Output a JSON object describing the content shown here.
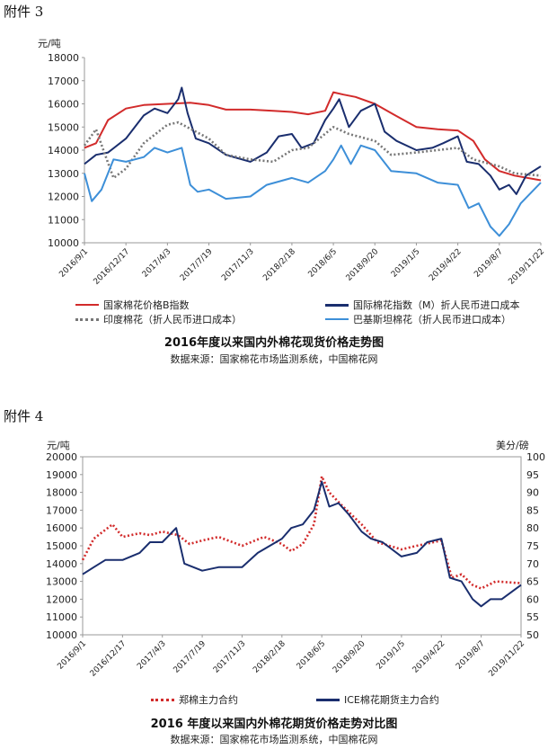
{
  "attachments": [
    {
      "label": "附件 3"
    },
    {
      "label": "附件 4"
    }
  ],
  "colors": {
    "red": "#d22b2b",
    "navy": "#1a2e6e",
    "gray": "#777777",
    "blue": "#3d8fd8",
    "axis": "#999999"
  },
  "chart_data": [
    {
      "type": "line",
      "title": "2016年度以来国内外棉花现货价格走势图",
      "source": "数据来源：国家棉花市场监测系统，中国棉花网",
      "ylabel": "元/吨",
      "ylim": [
        10000,
        18000
      ],
      "yticks": [
        10000,
        11000,
        12000,
        13000,
        14000,
        15000,
        16000,
        17000,
        18000
      ],
      "x_dates": [
        "2016/9/1",
        "2016/12/17",
        "2017/4/3",
        "2017/7/19",
        "2017/11/3",
        "2018/2/18",
        "2018/6/5",
        "2018/9/20",
        "2019/1/5",
        "2019/4/22",
        "2019/8/7",
        "2019/11/22"
      ],
      "xlim": [
        "2016/9/1",
        "2019/11/22"
      ],
      "legend": [
        "国家棉花价格B指数",
        "国际棉花指数（M）折人民币进口成本",
        "印度棉花（折人民币进口成本）",
        "巴基斯坦棉花（折人民币进口成本）"
      ],
      "series": [
        {
          "name": "国家棉花价格B指数",
          "color": "red",
          "style": "solid",
          "points": [
            [
              "2016/9/1",
              14100
            ],
            [
              "2016/10/1",
              14300
            ],
            [
              "2016/11/1",
              15300
            ],
            [
              "2016/12/17",
              15800
            ],
            [
              "2017/2/1",
              15950
            ],
            [
              "2017/4/3",
              16000
            ],
            [
              "2017/6/1",
              16050
            ],
            [
              "2017/7/19",
              15950
            ],
            [
              "2017/9/1",
              15750
            ],
            [
              "2017/11/3",
              15750
            ],
            [
              "2018/1/1",
              15700
            ],
            [
              "2018/2/18",
              15650
            ],
            [
              "2018/4/1",
              15550
            ],
            [
              "2018/5/15",
              15700
            ],
            [
              "2018/6/5",
              16500
            ],
            [
              "2018/7/1",
              16400
            ],
            [
              "2018/8/1",
              16300
            ],
            [
              "2018/9/20",
              16000
            ],
            [
              "2018/11/1",
              15600
            ],
            [
              "2019/1/5",
              15000
            ],
            [
              "2019/3/1",
              14900
            ],
            [
              "2019/4/22",
              14850
            ],
            [
              "2019/6/1",
              14400
            ],
            [
              "2019/7/1",
              13600
            ],
            [
              "2019/8/7",
              13100
            ],
            [
              "2019/9/15",
              12900
            ],
            [
              "2019/11/22",
              12700
            ]
          ]
        },
        {
          "name": "国际棉花指数（M）折人民币进口成本",
          "color": "navy",
          "style": "solid",
          "points": [
            [
              "2016/9/1",
              13400
            ],
            [
              "2016/10/1",
              13800
            ],
            [
              "2016/11/1",
              13900
            ],
            [
              "2016/12/17",
              14500
            ],
            [
              "2017/2/1",
              15500
            ],
            [
              "2017/3/1",
              15800
            ],
            [
              "2017/4/3",
              15600
            ],
            [
              "2017/5/1",
              16200
            ],
            [
              "2017/5/10",
              16700
            ],
            [
              "2017/5/25",
              15600
            ],
            [
              "2017/6/15",
              14500
            ],
            [
              "2017/7/19",
              14300
            ],
            [
              "2017/9/1",
              13800
            ],
            [
              "2017/11/3",
              13500
            ],
            [
              "2017/12/15",
              13900
            ],
            [
              "2018/1/15",
              14600
            ],
            [
              "2018/2/18",
              14700
            ],
            [
              "2018/3/15",
              14100
            ],
            [
              "2018/4/15",
              14300
            ],
            [
              "2018/5/15",
              15300
            ],
            [
              "2018/6/5",
              15800
            ],
            [
              "2018/6/20",
              16200
            ],
            [
              "2018/7/15",
              15000
            ],
            [
              "2018/8/15",
              15700
            ],
            [
              "2018/9/20",
              16000
            ],
            [
              "2018/10/15",
              14800
            ],
            [
              "2018/11/15",
              14400
            ],
            [
              "2019/1/5",
              14000
            ],
            [
              "2019/2/15",
              14100
            ],
            [
              "2019/3/15",
              14300
            ],
            [
              "2019/4/22",
              14600
            ],
            [
              "2019/5/15",
              13500
            ],
            [
              "2019/6/15",
              13400
            ],
            [
              "2019/7/15",
              12900
            ],
            [
              "2019/8/7",
              12300
            ],
            [
              "2019/9/1",
              12500
            ],
            [
              "2019/9/20",
              12100
            ],
            [
              "2019/10/15",
              12900
            ],
            [
              "2019/11/22",
              13300
            ]
          ]
        },
        {
          "name": "印度棉花（折人民币进口成本）",
          "color": "gray",
          "style": "dotted",
          "points": [
            [
              "2016/9/1",
              14200
            ],
            [
              "2016/10/1",
              14900
            ],
            [
              "2016/10/20",
              14000
            ],
            [
              "2016/11/15",
              12800
            ],
            [
              "2016/12/17",
              13200
            ],
            [
              "2017/2/1",
              14300
            ],
            [
              "2017/4/3",
              15100
            ],
            [
              "2017/5/1",
              15200
            ],
            [
              "2017/6/15",
              14800
            ],
            [
              "2017/7/19",
              14500
            ],
            [
              "2017/9/1",
              13800
            ],
            [
              "2017/11/3",
              13600
            ],
            [
              "2018/1/1",
              13500
            ],
            [
              "2018/2/18",
              14000
            ],
            [
              "2018/4/1",
              14100
            ],
            [
              "2018/6/5",
              15000
            ],
            [
              "2018/7/15",
              14700
            ],
            [
              "2018/9/20",
              14400
            ],
            [
              "2018/11/1",
              13800
            ],
            [
              "2019/1/5",
              13900
            ],
            [
              "2019/4/22",
              14100
            ],
            [
              "2019/6/1",
              13600
            ],
            [
              "2019/8/7",
              13300
            ],
            [
              "2019/9/15",
              13000
            ],
            [
              "2019/11/22",
              12900
            ]
          ]
        },
        {
          "name": "巴基斯坦棉花（折人民币进口成本）",
          "color": "blue",
          "style": "solid",
          "points": [
            [
              "2016/9/1",
              13000
            ],
            [
              "2016/9/20",
              11800
            ],
            [
              "2016/10/15",
              12300
            ],
            [
              "2016/11/15",
              13600
            ],
            [
              "2016/12/17",
              13500
            ],
            [
              "2017/2/1",
              13700
            ],
            [
              "2017/3/1",
              14100
            ],
            [
              "2017/4/3",
              13900
            ],
            [
              "2017/5/10",
              14100
            ],
            [
              "2017/6/1",
              12500
            ],
            [
              "2017/6/20",
              12200
            ],
            [
              "2017/7/19",
              12300
            ],
            [
              "2017/9/1",
              11900
            ],
            [
              "2017/11/3",
              12000
            ],
            [
              "2017/12/15",
              12500
            ],
            [
              "2018/2/18",
              12800
            ],
            [
              "2018/4/1",
              12600
            ],
            [
              "2018/5/15",
              13100
            ],
            [
              "2018/6/5",
              13600
            ],
            [
              "2018/6/25",
              14200
            ],
            [
              "2018/7/20",
              13400
            ],
            [
              "2018/8/15",
              14200
            ],
            [
              "2018/9/20",
              14000
            ],
            [
              "2018/11/1",
              13100
            ],
            [
              "2019/1/5",
              13000
            ],
            [
              "2019/3/1",
              12600
            ],
            [
              "2019/4/22",
              12500
            ],
            [
              "2019/5/20",
              11500
            ],
            [
              "2019/6/15",
              11700
            ],
            [
              "2019/7/15",
              10700
            ],
            [
              "2019/8/7",
              10300
            ],
            [
              "2019/9/1",
              10800
            ],
            [
              "2019/10/1",
              11700
            ],
            [
              "2019/11/22",
              12600
            ]
          ]
        }
      ]
    },
    {
      "type": "line",
      "title": "2016 年度以来国内外棉花期货价格走势对比图",
      "source": "数据来源：国家棉花市场监测系统，中国棉花网",
      "ylabel": "元/吨",
      "ylabel_right": "美分/磅",
      "ylim": [
        10000,
        20000
      ],
      "yticks": [
        10000,
        11000,
        12000,
        13000,
        14000,
        15000,
        16000,
        17000,
        18000,
        19000,
        20000
      ],
      "ylim_right": [
        50,
        100
      ],
      "yticks_right": [
        50,
        55,
        60,
        65,
        70,
        75,
        80,
        85,
        90,
        95,
        100
      ],
      "x_dates": [
        "2016/9/1",
        "2016/12/17",
        "2017/4/3",
        "2017/7/19",
        "2017/11/3",
        "2018/2/18",
        "2018/6/5",
        "2018/9/20",
        "2019/1/5",
        "2019/4/22",
        "2019/8/7",
        "2019/11/22"
      ],
      "xlim": [
        "2016/9/1",
        "2019/11/22"
      ],
      "legend": [
        "郑棉主力合约",
        "ICE棉花期货主力合约"
      ],
      "series": [
        {
          "name": "郑棉主力合约",
          "color": "red",
          "style": "dotted",
          "axis": "left",
          "points": [
            [
              "2016/9/1",
              14200
            ],
            [
              "2016/10/1",
              15400
            ],
            [
              "2016/11/1",
              15900
            ],
            [
              "2016/11/20",
              16200
            ],
            [
              "2016/12/17",
              15500
            ],
            [
              "2017/2/1",
              15700
            ],
            [
              "2017/3/1",
              15600
            ],
            [
              "2017/4/3",
              15800
            ],
            [
              "2017/5/15",
              15600
            ],
            [
              "2017/6/15",
              15100
            ],
            [
              "2017/7/19",
              15300
            ],
            [
              "2017/9/1",
              15500
            ],
            [
              "2017/11/3",
              15000
            ],
            [
              "2018/1/1",
              15500
            ],
            [
              "2018/2/18",
              15100
            ],
            [
              "2018/3/15",
              14700
            ],
            [
              "2018/4/15",
              15100
            ],
            [
              "2018/5/15",
              16200
            ],
            [
              "2018/6/5",
              18900
            ],
            [
              "2018/6/25",
              18000
            ],
            [
              "2018/8/1",
              17200
            ],
            [
              "2018/9/20",
              16200
            ],
            [
              "2018/11/1",
              15200
            ],
            [
              "2019/1/5",
              14800
            ],
            [
              "2019/2/15",
              15000
            ],
            [
              "2019/4/22",
              15300
            ],
            [
              "2019/5/20",
              13200
            ],
            [
              "2019/6/15",
              13400
            ],
            [
              "2019/7/15",
              12800
            ],
            [
              "2019/8/7",
              12600
            ],
            [
              "2019/9/15",
              13000
            ],
            [
              "2019/11/22",
              12900
            ]
          ]
        },
        {
          "name": "ICE棉花期货主力合约",
          "color": "navy",
          "style": "solid",
          "axis": "right",
          "points": [
            [
              "2016/9/1",
              67
            ],
            [
              "2016/10/1",
              69
            ],
            [
              "2016/11/1",
              71
            ],
            [
              "2016/12/17",
              71
            ],
            [
              "2017/2/1",
              73
            ],
            [
              "2017/3/1",
              76
            ],
            [
              "2017/4/3",
              76
            ],
            [
              "2017/5/10",
              80
            ],
            [
              "2017/6/1",
              70
            ],
            [
              "2017/7/19",
              68
            ],
            [
              "2017/9/1",
              69
            ],
            [
              "2017/11/3",
              69
            ],
            [
              "2017/12/15",
              73
            ],
            [
              "2018/2/18",
              77
            ],
            [
              "2018/3/15",
              80
            ],
            [
              "2018/4/15",
              81
            ],
            [
              "2018/5/15",
              85
            ],
            [
              "2018/6/5",
              93
            ],
            [
              "2018/6/25",
              86
            ],
            [
              "2018/7/20",
              87
            ],
            [
              "2018/8/15",
              84
            ],
            [
              "2018/9/20",
              79
            ],
            [
              "2018/10/15",
              77
            ],
            [
              "2018/11/15",
              76
            ],
            [
              "2019/1/5",
              72
            ],
            [
              "2019/2/15",
              73
            ],
            [
              "2019/3/15",
              76
            ],
            [
              "2019/4/22",
              77
            ],
            [
              "2019/5/15",
              66
            ],
            [
              "2019/6/15",
              65
            ],
            [
              "2019/7/15",
              60
            ],
            [
              "2019/8/7",
              58
            ],
            [
              "2019/9/1",
              60
            ],
            [
              "2019/10/1",
              60
            ],
            [
              "2019/11/22",
              64
            ]
          ]
        }
      ]
    }
  ]
}
